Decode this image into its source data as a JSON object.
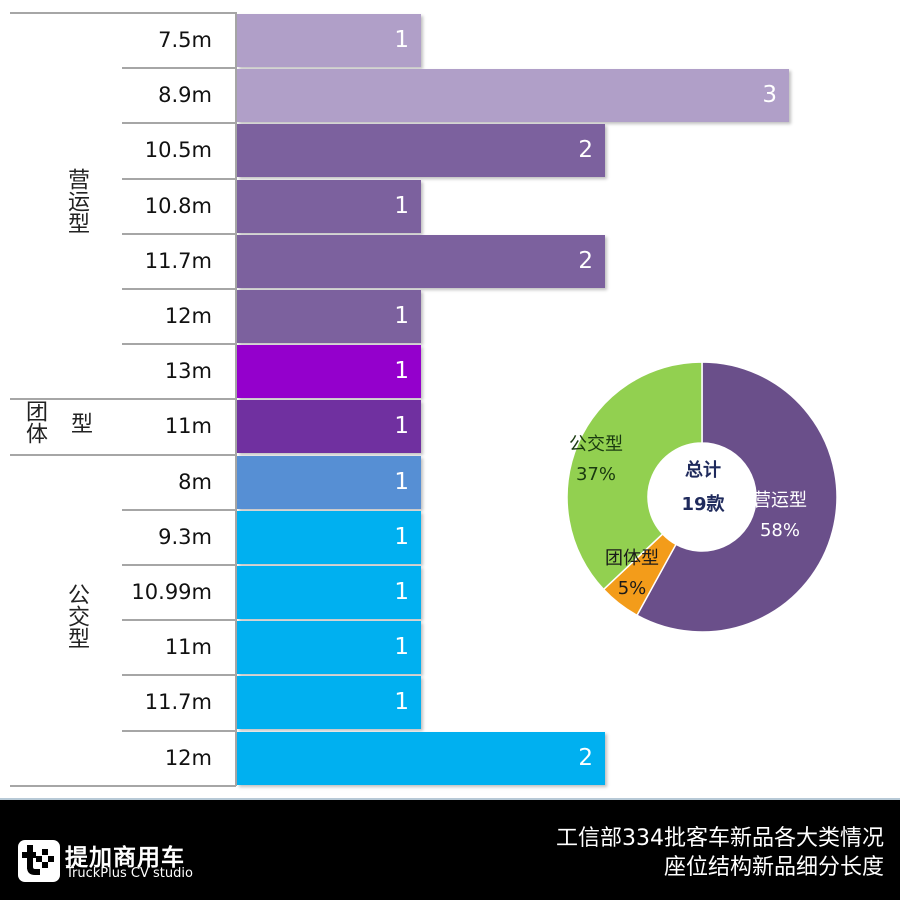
{
  "chart_data": [
    {
      "type": "bar",
      "orientation": "horizontal",
      "title": "",
      "xlabel": "",
      "ylabel": "",
      "groups": [
        {
          "name": "营运型",
          "categories": [
            "7.5m",
            "8.9m",
            "10.5m",
            "10.8m",
            "11.7m",
            "12m",
            "13m"
          ],
          "values": [
            1,
            3,
            2,
            1,
            2,
            1,
            1
          ]
        },
        {
          "name": "团体型",
          "categories": [
            "11m"
          ],
          "values": [
            1
          ]
        },
        {
          "name": "公交型",
          "categories": [
            "8m",
            "9.3m",
            "10.99m",
            "11m",
            "11.7m",
            "12m"
          ],
          "values": [
            1,
            1,
            1,
            1,
            1,
            2
          ]
        }
      ],
      "categories": [
        "7.5m",
        "8.9m",
        "10.5m",
        "10.8m",
        "11.7m",
        "12m",
        "13m",
        "11m",
        "8m",
        "9.3m",
        "10.99m",
        "11m",
        "11.7m",
        "12m"
      ],
      "values": [
        1,
        3,
        2,
        1,
        2,
        1,
        1,
        1,
        1,
        1,
        1,
        1,
        1,
        2
      ],
      "data_labels": true,
      "grid": false,
      "xlim": [
        0,
        3
      ]
    },
    {
      "type": "pie",
      "variant": "donut",
      "center_text": [
        "总计",
        "19款"
      ],
      "labels": [
        "营运型",
        "团体型",
        "公交型"
      ],
      "values": [
        58,
        5,
        37
      ],
      "unit": "%",
      "colors": [
        "#6a4f8a",
        "#f39c1a",
        "#92d050"
      ]
    }
  ],
  "bars": [
    {
      "label": "7.5m",
      "value": "1",
      "units": 1,
      "color": "#b09fc8"
    },
    {
      "label": "8.9m",
      "value": "3",
      "units": 3,
      "color": "#b09fc8"
    },
    {
      "label": "10.5m",
      "value": "2",
      "units": 2,
      "color": "#7c619e"
    },
    {
      "label": "10.8m",
      "value": "1",
      "units": 1,
      "color": "#7c619e"
    },
    {
      "label": "11.7m",
      "value": "2",
      "units": 2,
      "color": "#7c619e"
    },
    {
      "label": "12m",
      "value": "1",
      "units": 1,
      "color": "#7c619e"
    },
    {
      "label": "13m",
      "value": "1",
      "units": 1,
      "color": "#9400cc"
    },
    {
      "label": "11m",
      "value": "1",
      "units": 1,
      "color": "#7030a0"
    },
    {
      "label": "8m",
      "value": "1",
      "units": 1,
      "color": "#568fd4"
    },
    {
      "label": "9.3m",
      "value": "1",
      "units": 1,
      "color": "#00b0f0"
    },
    {
      "label": "10.99m",
      "value": "1",
      "units": 1,
      "color": "#00b0f0"
    },
    {
      "label": "11m",
      "value": "1",
      "units": 1,
      "color": "#00b0f0"
    },
    {
      "label": "11.7m",
      "value": "1",
      "units": 1,
      "color": "#00b0f0"
    },
    {
      "label": "12m",
      "value": "2",
      "units": 2,
      "color": "#00b0f0"
    }
  ],
  "group_labels": {
    "operating": "营运型",
    "group_a": "团体",
    "group_b": "型",
    "transit": "公交型"
  },
  "donut": {
    "center_line1": "总计",
    "center_line2": "19款",
    "slices": [
      {
        "name": "营运型",
        "pct": "58%",
        "color": "#6a4f8a",
        "text_color": "#ffffff"
      },
      {
        "name": "团体型",
        "pct": "5%",
        "color": "#f39c1a",
        "text_color": "#1a1a1a"
      },
      {
        "name": "公交型",
        "pct": "37%",
        "color": "#92d050",
        "text_color": "#1a3a10"
      }
    ]
  },
  "footer": {
    "brand_cn": "提加商用车",
    "brand_en": "TruckPlus CV studio",
    "title_line1": "工信部334批客车新品各大类情况",
    "title_line2": "座位结构新品细分长度"
  }
}
